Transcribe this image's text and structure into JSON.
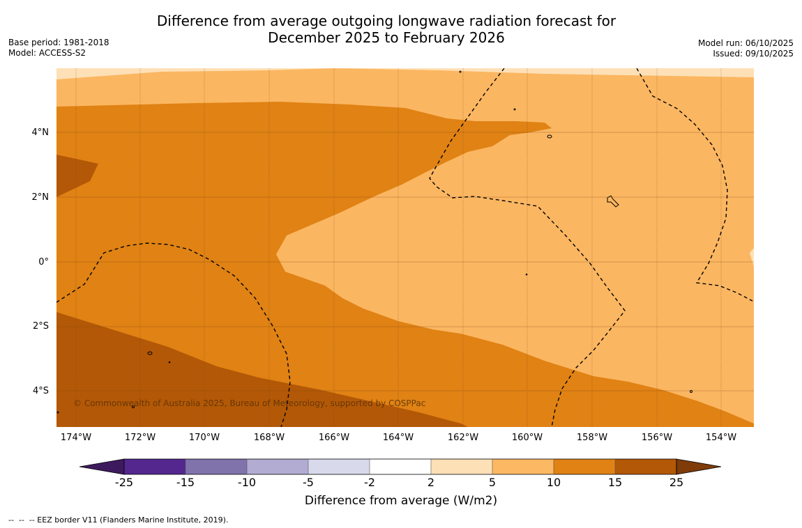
{
  "title_line1": "Difference from average outgoing longwave radiation forecast for",
  "title_line2": "December 2025 to February 2026",
  "base_period": "Base period: 1981-2018",
  "model": "Model: ACCESS-S2",
  "model_run": "Model run: 06/10/2025",
  "issued": "Issued: 09/10/2025",
  "lat_labels": [
    "4°N",
    "2°N",
    "0°",
    "2°S",
    "4°S"
  ],
  "lon_labels": [
    "174°W",
    "172°W",
    "170°W",
    "168°W",
    "166°W",
    "164°W",
    "162°W",
    "160°W",
    "158°W",
    "156°W",
    "154°W"
  ],
  "copyright": "© Commonwealth of Australia 2025, Bureau of Meteorology, supported by COSPPac",
  "colorbar": {
    "ticks": [
      "-25",
      "-15",
      "-10",
      "-5",
      "-2",
      "2",
      "5",
      "10",
      "15",
      "25"
    ],
    "colors": [
      "#3d1a5e",
      "#54278f",
      "#8073ac",
      "#b2abd2",
      "#d8daeb",
      "#ffffff",
      "#fee0b6",
      "#fdb863",
      "#e08214",
      "#b35806",
      "#7f3b08"
    ],
    "label": "Difference from average (W/m2)"
  },
  "footnote": "--  --  -- EEZ border V11 (Flanders Marine Institute, 2019).",
  "map_colors": {
    "lightest": "#fee0b6",
    "light": "#fbb661",
    "medium": "#e08214",
    "dark": "#b35806"
  }
}
